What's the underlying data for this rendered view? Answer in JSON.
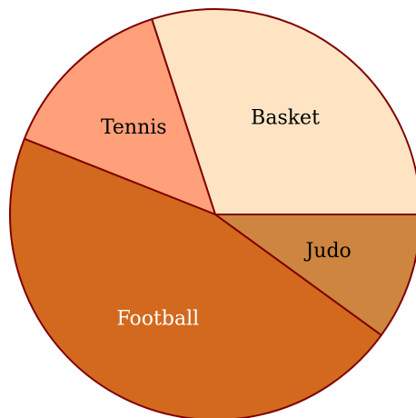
{
  "chart_data": {
    "type": "pie",
    "slices": [
      {
        "label": "Basket",
        "value": 30,
        "fill": "#ffe4c4",
        "label_color": "#000000"
      },
      {
        "label": "Tennis",
        "value": 14,
        "fill": "#ffa07a",
        "label_color": "#000000"
      },
      {
        "label": "Football",
        "value": 46,
        "fill": "#d2691e",
        "label_color": "#ffffff"
      },
      {
        "label": "Judo",
        "value": 10,
        "fill": "#cd853f",
        "label_color": "#000000"
      }
    ],
    "start_angle_deg": 0,
    "direction": "counterclockwise",
    "stroke_color": "#800000",
    "title": "",
    "legend": "none"
  }
}
